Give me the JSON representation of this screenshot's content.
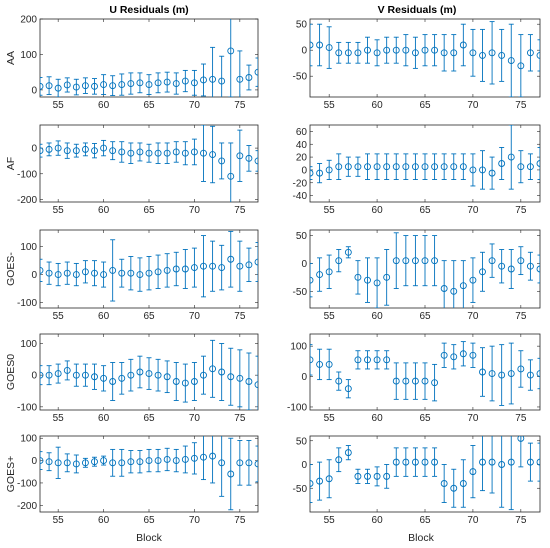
{
  "column_titles": [
    "U Residuals (m)",
    "V Residuals (m)"
  ],
  "x_axis_label": "Block",
  "series_color": "#0072BD",
  "chart_data": [
    {
      "type": "scatter",
      "row": "AA",
      "column": "U Residuals (m)",
      "xlabel": "",
      "ylabel": "AA",
      "xlim": [
        53,
        77
      ],
      "ylim": [
        -20,
        200
      ],
      "yticks": [
        0,
        100,
        200
      ],
      "xticks": [
        55,
        60,
        65,
        70,
        75
      ],
      "x": [
        53,
        54,
        55,
        56,
        57,
        58,
        59,
        60,
        61,
        62,
        63,
        64,
        65,
        66,
        67,
        68,
        69,
        70,
        71,
        72,
        73,
        74,
        75,
        76,
        77
      ],
      "y": [
        10,
        12,
        5,
        14,
        8,
        12,
        10,
        15,
        12,
        15,
        18,
        20,
        15,
        20,
        22,
        18,
        25,
        20,
        28,
        30,
        25,
        110,
        30,
        35,
        50
      ],
      "err": [
        25,
        25,
        25,
        20,
        22,
        22,
        22,
        28,
        28,
        30,
        30,
        28,
        28,
        28,
        28,
        30,
        30,
        35,
        45,
        90,
        70,
        130,
        80,
        35,
        40
      ]
    },
    {
      "type": "scatter",
      "row": "AF",
      "column": "U Residuals (m)",
      "xlabel": "",
      "ylabel": "AF",
      "xlim": [
        53,
        77
      ],
      "ylim": [
        -210,
        90
      ],
      "yticks": [
        -200,
        -100,
        0
      ],
      "xticks": [
        55,
        60,
        65,
        70,
        75
      ],
      "x": [
        53,
        54,
        55,
        56,
        57,
        58,
        59,
        60,
        61,
        62,
        63,
        64,
        65,
        66,
        67,
        68,
        69,
        70,
        71,
        72,
        73,
        74,
        75,
        76,
        77
      ],
      "y": [
        -10,
        -5,
        0,
        -10,
        -10,
        -5,
        -10,
        0,
        -10,
        -15,
        -20,
        -15,
        -20,
        -20,
        -20,
        -15,
        -20,
        -15,
        -20,
        -25,
        -50,
        -110,
        -30,
        -40,
        -50
      ],
      "err": [
        25,
        25,
        28,
        30,
        25,
        25,
        28,
        30,
        35,
        40,
        40,
        35,
        35,
        40,
        40,
        40,
        45,
        50,
        110,
        110,
        70,
        130,
        100,
        50,
        40
      ]
    },
    {
      "type": "scatter",
      "row": "GOES-",
      "column": "U Residuals (m)",
      "xlabel": "",
      "ylabel": "GOES-",
      "xlim": [
        53,
        77
      ],
      "ylim": [
        -120,
        160
      ],
      "yticks": [
        -100,
        0,
        100
      ],
      "xticks": [
        55,
        60,
        65,
        70,
        75
      ],
      "x": [
        53,
        54,
        55,
        56,
        57,
        58,
        59,
        60,
        61,
        62,
        63,
        64,
        65,
        66,
        67,
        68,
        69,
        70,
        71,
        72,
        73,
        74,
        75,
        76,
        77
      ],
      "y": [
        15,
        5,
        0,
        5,
        0,
        10,
        5,
        0,
        15,
        5,
        5,
        0,
        5,
        10,
        15,
        20,
        20,
        25,
        30,
        30,
        25,
        55,
        30,
        35,
        45
      ],
      "err": [
        40,
        40,
        40,
        40,
        40,
        40,
        45,
        45,
        110,
        50,
        60,
        60,
        60,
        60,
        60,
        60,
        70,
        70,
        110,
        90,
        80,
        100,
        90,
        60,
        70
      ]
    },
    {
      "type": "scatter",
      "row": "GOES0",
      "column": "U Residuals (m)",
      "xlabel": "",
      "ylabel": "GOES0",
      "xlim": [
        53,
        77
      ],
      "ylim": [
        -110,
        130
      ],
      "yticks": [
        -100,
        0,
        100
      ],
      "xticks": [
        55,
        60,
        65,
        70,
        75
      ],
      "x": [
        53,
        54,
        55,
        56,
        57,
        58,
        59,
        60,
        61,
        62,
        63,
        64,
        65,
        66,
        67,
        68,
        69,
        70,
        71,
        72,
        73,
        74,
        75,
        76,
        77
      ],
      "y": [
        0,
        0,
        5,
        15,
        0,
        0,
        -5,
        -10,
        -20,
        -10,
        0,
        10,
        5,
        0,
        -5,
        -20,
        -25,
        -20,
        0,
        20,
        10,
        -5,
        -10,
        -20,
        -30
      ],
      "err": [
        30,
        30,
        30,
        30,
        35,
        35,
        40,
        40,
        60,
        50,
        50,
        50,
        50,
        50,
        50,
        60,
        60,
        60,
        60,
        90,
        90,
        90,
        90,
        90,
        90
      ]
    },
    {
      "type": "scatter",
      "row": "GOES+",
      "column": "U Residuals (m)",
      "xlabel": "Block",
      "ylabel": "GOES+",
      "xlim": [
        53,
        77
      ],
      "ylim": [
        -230,
        110
      ],
      "yticks": [
        -200,
        -100,
        0,
        100
      ],
      "xticks": [
        55,
        60,
        65,
        70,
        75
      ],
      "x": [
        53,
        54,
        55,
        56,
        57,
        58,
        59,
        60,
        61,
        62,
        63,
        64,
        65,
        66,
        67,
        68,
        69,
        70,
        71,
        72,
        73,
        74,
        75,
        76,
        77
      ],
      "y": [
        0,
        -5,
        -10,
        -10,
        -15,
        -10,
        -5,
        0,
        -10,
        -10,
        -5,
        -5,
        0,
        0,
        5,
        0,
        5,
        10,
        15,
        20,
        -10,
        -60,
        -10,
        -10,
        -15
      ],
      "err": [
        40,
        40,
        70,
        40,
        40,
        20,
        20,
        20,
        60,
        60,
        50,
        50,
        50,
        50,
        50,
        50,
        60,
        70,
        100,
        120,
        150,
        160,
        100,
        100,
        80
      ]
    },
    {
      "type": "scatter",
      "row": "AA",
      "column": "V Residuals (m)",
      "xlabel": "",
      "ylabel": "",
      "xlim": [
        53,
        77
      ],
      "ylim": [
        -90,
        60
      ],
      "yticks": [
        -50,
        0,
        50
      ],
      "xticks": [
        55,
        60,
        65,
        70,
        75
      ],
      "x": [
        53,
        54,
        55,
        56,
        57,
        58,
        59,
        60,
        61,
        62,
        63,
        64,
        65,
        66,
        67,
        68,
        69,
        70,
        71,
        72,
        73,
        74,
        75,
        76,
        77
      ],
      "y": [
        10,
        10,
        5,
        -5,
        -5,
        -5,
        0,
        -5,
        0,
        0,
        0,
        -5,
        0,
        0,
        -5,
        -5,
        10,
        -5,
        -10,
        -5,
        -10,
        -20,
        -30,
        -5,
        -10
      ],
      "err": [
        40,
        40,
        40,
        20,
        20,
        20,
        25,
        25,
        25,
        25,
        30,
        30,
        30,
        30,
        35,
        35,
        40,
        45,
        50,
        60,
        50,
        70,
        60,
        35,
        30
      ]
    },
    {
      "type": "scatter",
      "row": "AF",
      "column": "V Residuals (m)",
      "xlabel": "",
      "ylabel": "",
      "xlim": [
        53,
        77
      ],
      "ylim": [
        -50,
        70
      ],
      "yticks": [
        -40,
        -20,
        0,
        20,
        40,
        60
      ],
      "xticks": [
        55,
        60,
        65,
        70,
        75
      ],
      "x": [
        53,
        54,
        55,
        56,
        57,
        58,
        59,
        60,
        61,
        62,
        63,
        64,
        65,
        66,
        67,
        68,
        69,
        70,
        71,
        72,
        73,
        74,
        75,
        76,
        77
      ],
      "y": [
        -5,
        -5,
        0,
        5,
        5,
        5,
        5,
        5,
        5,
        5,
        5,
        5,
        5,
        5,
        5,
        5,
        5,
        0,
        0,
        -5,
        10,
        20,
        5,
        5,
        10
      ],
      "err": [
        10,
        15,
        15,
        20,
        15,
        15,
        20,
        20,
        20,
        20,
        20,
        20,
        20,
        20,
        20,
        20,
        20,
        25,
        30,
        25,
        25,
        50,
        25,
        20,
        25
      ]
    },
    {
      "type": "scatter",
      "row": "GOES-",
      "column": "V Residuals (m)",
      "xlabel": "",
      "ylabel": "",
      "xlim": [
        53,
        77
      ],
      "ylim": [
        -80,
        60
      ],
      "yticks": [
        -50,
        0,
        50
      ],
      "xticks": [
        55,
        60,
        65,
        70,
        75
      ],
      "x": [
        53,
        54,
        55,
        56,
        57,
        58,
        59,
        60,
        61,
        62,
        63,
        64,
        65,
        66,
        67,
        68,
        69,
        70,
        71,
        72,
        73,
        74,
        75,
        76,
        77
      ],
      "y": [
        -30,
        -20,
        -15,
        5,
        20,
        -25,
        -30,
        -35,
        -25,
        5,
        5,
        5,
        5,
        5,
        -45,
        -50,
        -40,
        -30,
        -15,
        5,
        -5,
        -10,
        5,
        -5,
        -10
      ],
      "err": [
        30,
        30,
        30,
        20,
        10,
        30,
        40,
        45,
        50,
        50,
        45,
        45,
        45,
        45,
        50,
        55,
        45,
        40,
        35,
        30,
        30,
        35,
        25,
        25,
        25
      ]
    },
    {
      "type": "scatter",
      "row": "GOES0",
      "column": "V Residuals (m)",
      "xlabel": "",
      "ylabel": "",
      "xlim": [
        53,
        77
      ],
      "ylim": [
        -110,
        140
      ],
      "yticks": [
        -100,
        0,
        100
      ],
      "xticks": [
        55,
        60,
        65,
        70,
        75
      ],
      "x": [
        53,
        54,
        55,
        56,
        57,
        58,
        59,
        60,
        61,
        62,
        63,
        64,
        65,
        66,
        67,
        68,
        69,
        70,
        71,
        72,
        73,
        74,
        75,
        76,
        77
      ],
      "y": [
        55,
        40,
        40,
        -15,
        -40,
        55,
        55,
        55,
        55,
        -15,
        -15,
        -15,
        -15,
        -20,
        70,
        65,
        75,
        70,
        15,
        10,
        5,
        10,
        25,
        5,
        10
      ],
      "err": [
        50,
        50,
        50,
        30,
        30,
        30,
        30,
        30,
        30,
        60,
        60,
        60,
        60,
        60,
        40,
        40,
        40,
        40,
        80,
        90,
        100,
        100,
        60,
        50,
        50
      ]
    },
    {
      "type": "scatter",
      "row": "GOES+",
      "column": "V Residuals (m)",
      "xlabel": "Block",
      "ylabel": "",
      "xlim": [
        53,
        77
      ],
      "ylim": [
        -100,
        60
      ],
      "yticks": [
        -50,
        0,
        50
      ],
      "xticks": [
        55,
        60,
        65,
        70,
        75
      ],
      "x": [
        53,
        54,
        55,
        56,
        57,
        58,
        59,
        60,
        61,
        62,
        63,
        64,
        65,
        66,
        67,
        68,
        69,
        70,
        71,
        72,
        73,
        74,
        75,
        76,
        77
      ],
      "y": [
        -40,
        -35,
        -30,
        10,
        25,
        -25,
        -25,
        -25,
        -25,
        5,
        5,
        5,
        5,
        5,
        -40,
        -50,
        -40,
        -15,
        5,
        5,
        0,
        5,
        55,
        5,
        5
      ],
      "err": [
        40,
        40,
        40,
        25,
        15,
        15,
        15,
        20,
        25,
        30,
        30,
        30,
        30,
        30,
        40,
        40,
        50,
        55,
        60,
        65,
        90,
        100,
        60,
        40,
        40
      ]
    }
  ]
}
